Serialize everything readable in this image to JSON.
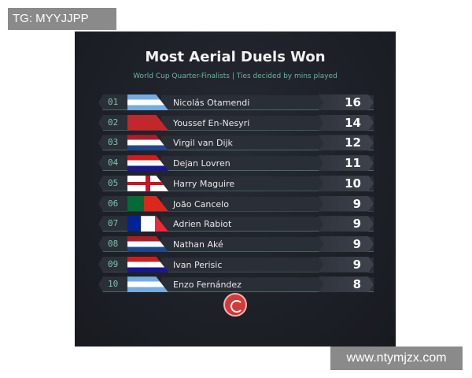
{
  "watermarks": {
    "top": "TG: MYYJJPP",
    "bottom": "www.ntymjzx.com"
  },
  "chart_data": {
    "type": "table",
    "title": "Most Aerial Duels Won",
    "subtitle": "World Cup Quarter-Finalists | Ties decided by mins played",
    "rows": [
      {
        "rank": "01",
        "name": "Nicolás Otamendi",
        "value": 16,
        "flag": "argentina"
      },
      {
        "rank": "02",
        "name": "Youssef En-Nesyri",
        "value": 14,
        "flag": "morocco"
      },
      {
        "rank": "03",
        "name": "Virgil van Dijk",
        "value": 12,
        "flag": "netherlands"
      },
      {
        "rank": "04",
        "name": "Dejan Lovren",
        "value": 11,
        "flag": "croatia"
      },
      {
        "rank": "05",
        "name": "Harry Maguire",
        "value": 10,
        "flag": "england"
      },
      {
        "rank": "06",
        "name": "João Cancelo",
        "value": 9,
        "flag": "portugal"
      },
      {
        "rank": "07",
        "name": "Adrien Rabiot",
        "value": 9,
        "flag": "france"
      },
      {
        "rank": "08",
        "name": "Nathan Aké",
        "value": 9,
        "flag": "netherlands"
      },
      {
        "rank": "09",
        "name": "Ivan Perisic",
        "value": 9,
        "flag": "croatia"
      },
      {
        "rank": "10",
        "name": "Enzo Fernández",
        "value": 8,
        "flag": "argentina"
      }
    ]
  },
  "colors": {
    "accent": "#6fb3a0",
    "background": "#1e2129",
    "logo": "#d23a3a"
  }
}
